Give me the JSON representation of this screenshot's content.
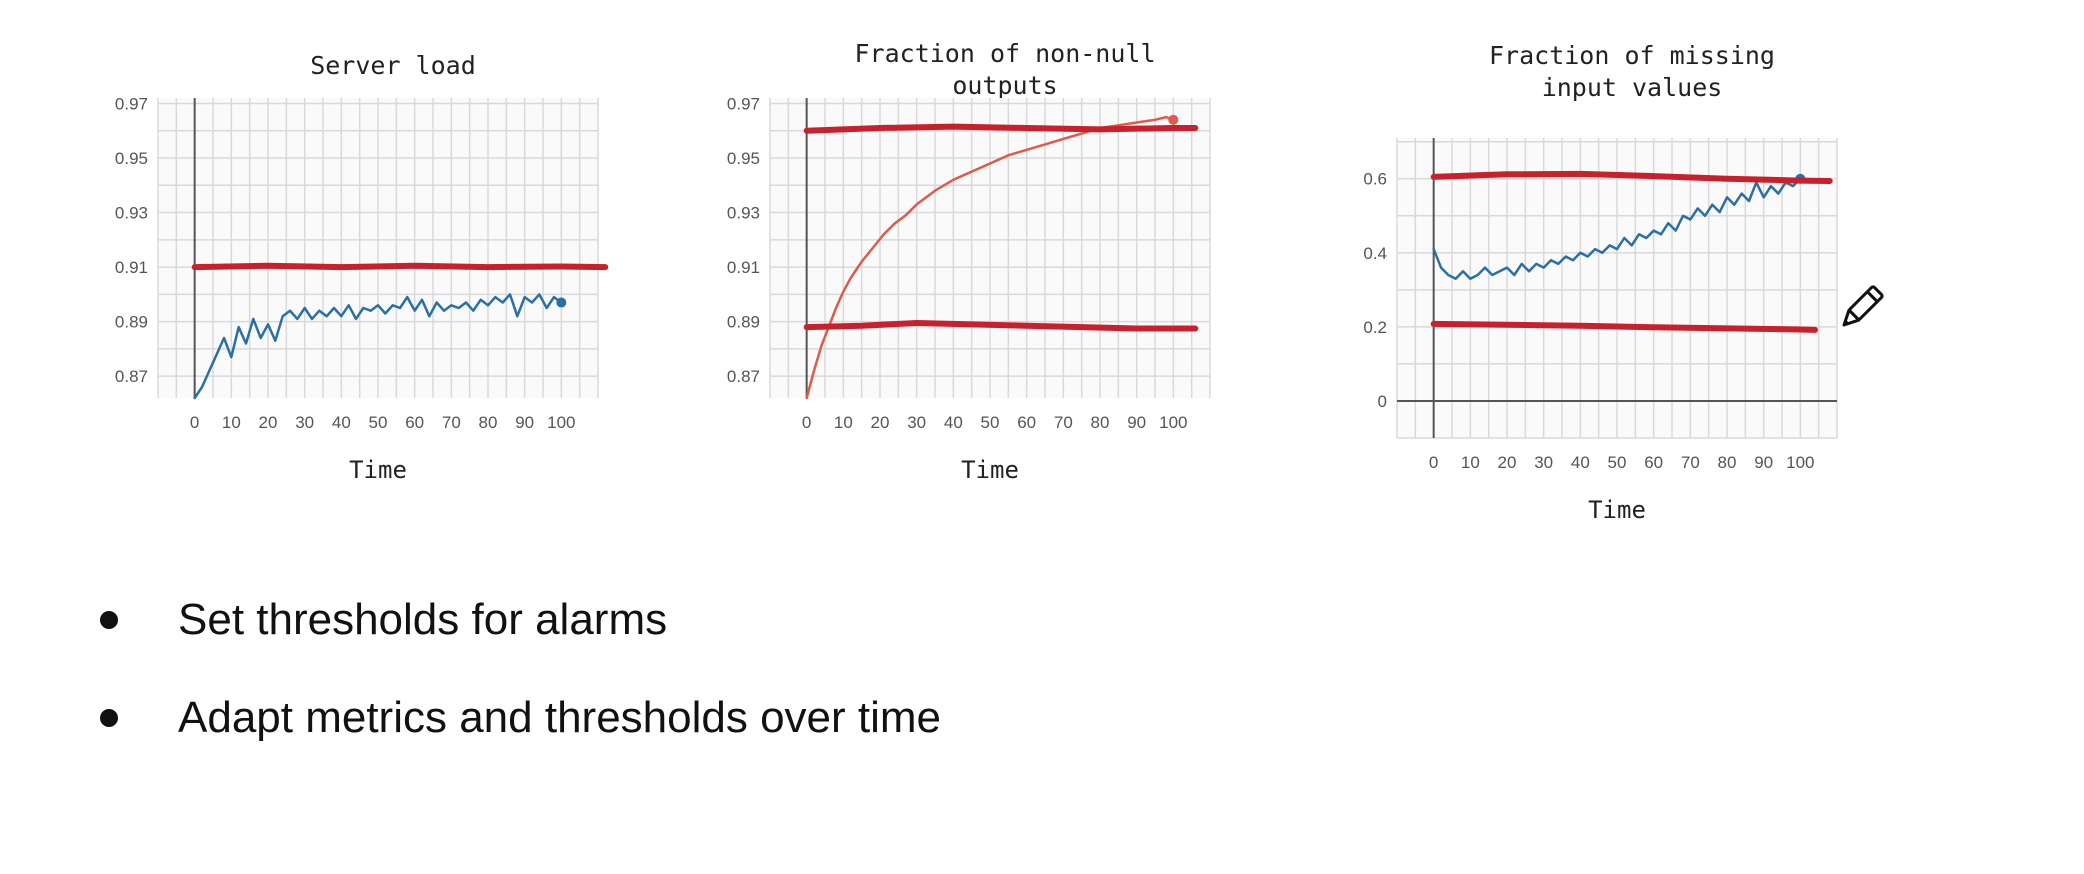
{
  "slide": {
    "bullets": [
      "Set thresholds for alarms",
      "Adapt metrics and thresholds over time"
    ]
  },
  "colors": {
    "series": "#2a6fa8",
    "threshold": "#c8202c",
    "growth": "#e05a4a",
    "grid": "#d9d9d9",
    "axis": "#555555"
  },
  "icons": [
    "pencil-icon"
  ],
  "chart_data": [
    {
      "type": "line",
      "title": "Server load",
      "xlabel": "Time",
      "ylabel": "",
      "xlim": [
        -10,
        110
      ],
      "ylim": [
        0.862,
        0.972
      ],
      "xticks": [
        0,
        10,
        20,
        30,
        40,
        50,
        60,
        70,
        80,
        90,
        100
      ],
      "yticks": [
        0.87,
        0.89,
        0.91,
        0.93,
        0.95,
        0.97
      ],
      "ytick_labels": [
        "0.87",
        "0.89",
        "0.91",
        "0.93",
        "0.95",
        "0.97"
      ],
      "grid": true,
      "series": [
        {
          "kind": "data",
          "color": "blue",
          "x": [
            0,
            2,
            4,
            6,
            8,
            10,
            12,
            14,
            16,
            18,
            20,
            22,
            24,
            26,
            28,
            30,
            32,
            34,
            36,
            38,
            40,
            42,
            44,
            46,
            48,
            50,
            52,
            54,
            56,
            58,
            60,
            62,
            64,
            66,
            68,
            70,
            72,
            74,
            76,
            78,
            80,
            82,
            84,
            86,
            88,
            90,
            92,
            94,
            96,
            98,
            100
          ],
          "y": [
            0.862,
            0.866,
            0.872,
            0.878,
            0.884,
            0.877,
            0.888,
            0.882,
            0.891,
            0.884,
            0.889,
            0.883,
            0.892,
            0.894,
            0.891,
            0.895,
            0.891,
            0.894,
            0.892,
            0.895,
            0.892,
            0.896,
            0.891,
            0.895,
            0.894,
            0.896,
            0.893,
            0.896,
            0.895,
            0.899,
            0.894,
            0.898,
            0.892,
            0.897,
            0.894,
            0.896,
            0.895,
            0.897,
            0.894,
            0.898,
            0.896,
            0.899,
            0.897,
            0.9,
            0.892,
            0.899,
            0.897,
            0.9,
            0.895,
            0.899,
            0.897
          ]
        },
        {
          "kind": "threshold",
          "color": "red",
          "x": [
            0,
            20,
            40,
            60,
            80,
            100,
            112
          ],
          "y": [
            0.91,
            0.9105,
            0.91,
            0.9105,
            0.91,
            0.9102,
            0.91
          ]
        }
      ]
    },
    {
      "type": "line",
      "title": "Fraction of non-null outputs",
      "title_lines": [
        "Fraction of non-null",
        "outputs"
      ],
      "xlabel": "Time",
      "ylabel": "",
      "xlim": [
        -10,
        110
      ],
      "ylim": [
        0.862,
        0.972
      ],
      "xticks": [
        0,
        10,
        20,
        30,
        40,
        50,
        60,
        70,
        80,
        90,
        100
      ],
      "yticks": [
        0.87,
        0.89,
        0.91,
        0.93,
        0.95,
        0.97
      ],
      "ytick_labels": [
        "0.87",
        "0.89",
        "0.91",
        "0.93",
        "0.95",
        "0.97"
      ],
      "grid": true,
      "series": [
        {
          "kind": "data",
          "color": "orange",
          "x": [
            0,
            2,
            4,
            6,
            8,
            10,
            12,
            15,
            18,
            21,
            24,
            27,
            30,
            35,
            40,
            45,
            50,
            55,
            60,
            65,
            70,
            75,
            80,
            85,
            90,
            95,
            98,
            100
          ],
          "y": [
            0.862,
            0.872,
            0.881,
            0.888,
            0.895,
            0.901,
            0.906,
            0.912,
            0.917,
            0.922,
            0.926,
            0.929,
            0.933,
            0.938,
            0.942,
            0.945,
            0.948,
            0.951,
            0.953,
            0.955,
            0.957,
            0.959,
            0.961,
            0.962,
            0.963,
            0.964,
            0.965,
            0.964
          ]
        },
        {
          "kind": "threshold",
          "color": "red",
          "x": [
            0,
            20,
            40,
            60,
            80,
            100,
            106
          ],
          "y": [
            0.96,
            0.961,
            0.9615,
            0.961,
            0.9605,
            0.961,
            0.961
          ]
        },
        {
          "kind": "threshold",
          "color": "red",
          "x": [
            0,
            15,
            30,
            45,
            60,
            75,
            90,
            106
          ],
          "y": [
            0.888,
            0.8885,
            0.8895,
            0.889,
            0.8885,
            0.888,
            0.8875,
            0.8875
          ]
        }
      ]
    },
    {
      "type": "line",
      "title": "Fraction of missing input values",
      "title_lines": [
        "Fraction of missing",
        "input values"
      ],
      "xlabel": "Time",
      "ylabel": "",
      "xlim": [
        -10,
        110
      ],
      "ylim": [
        -0.1,
        0.71
      ],
      "xticks": [
        0,
        10,
        20,
        30,
        40,
        50,
        60,
        70,
        80,
        90,
        100
      ],
      "yticks": [
        0,
        0.2,
        0.4,
        0.6
      ],
      "ytick_labels": [
        "0",
        "0.2",
        "0.4",
        "0.6"
      ],
      "grid": true,
      "series": [
        {
          "kind": "data",
          "color": "blue",
          "x": [
            0,
            2,
            4,
            6,
            8,
            10,
            12,
            14,
            16,
            18,
            20,
            22,
            24,
            26,
            28,
            30,
            32,
            34,
            36,
            38,
            40,
            42,
            44,
            46,
            48,
            50,
            52,
            54,
            56,
            58,
            60,
            62,
            64,
            66,
            68,
            70,
            72,
            74,
            76,
            78,
            80,
            82,
            84,
            86,
            88,
            90,
            92,
            94,
            96,
            98,
            100
          ],
          "y": [
            0.41,
            0.36,
            0.34,
            0.33,
            0.35,
            0.33,
            0.34,
            0.36,
            0.34,
            0.35,
            0.36,
            0.34,
            0.37,
            0.35,
            0.37,
            0.36,
            0.38,
            0.37,
            0.39,
            0.38,
            0.4,
            0.39,
            0.41,
            0.4,
            0.42,
            0.41,
            0.44,
            0.42,
            0.45,
            0.44,
            0.46,
            0.45,
            0.48,
            0.46,
            0.5,
            0.49,
            0.52,
            0.5,
            0.53,
            0.51,
            0.55,
            0.53,
            0.56,
            0.54,
            0.59,
            0.55,
            0.58,
            0.56,
            0.59,
            0.58,
            0.6
          ]
        },
        {
          "kind": "threshold",
          "color": "red",
          "x": [
            0,
            20,
            40,
            60,
            80,
            100,
            108
          ],
          "y": [
            0.605,
            0.612,
            0.613,
            0.607,
            0.6,
            0.595,
            0.594
          ]
        },
        {
          "kind": "threshold",
          "color": "red",
          "x": [
            0,
            20,
            40,
            60,
            80,
            100,
            104
          ],
          "y": [
            0.208,
            0.206,
            0.203,
            0.199,
            0.196,
            0.193,
            0.192
          ]
        }
      ]
    }
  ]
}
